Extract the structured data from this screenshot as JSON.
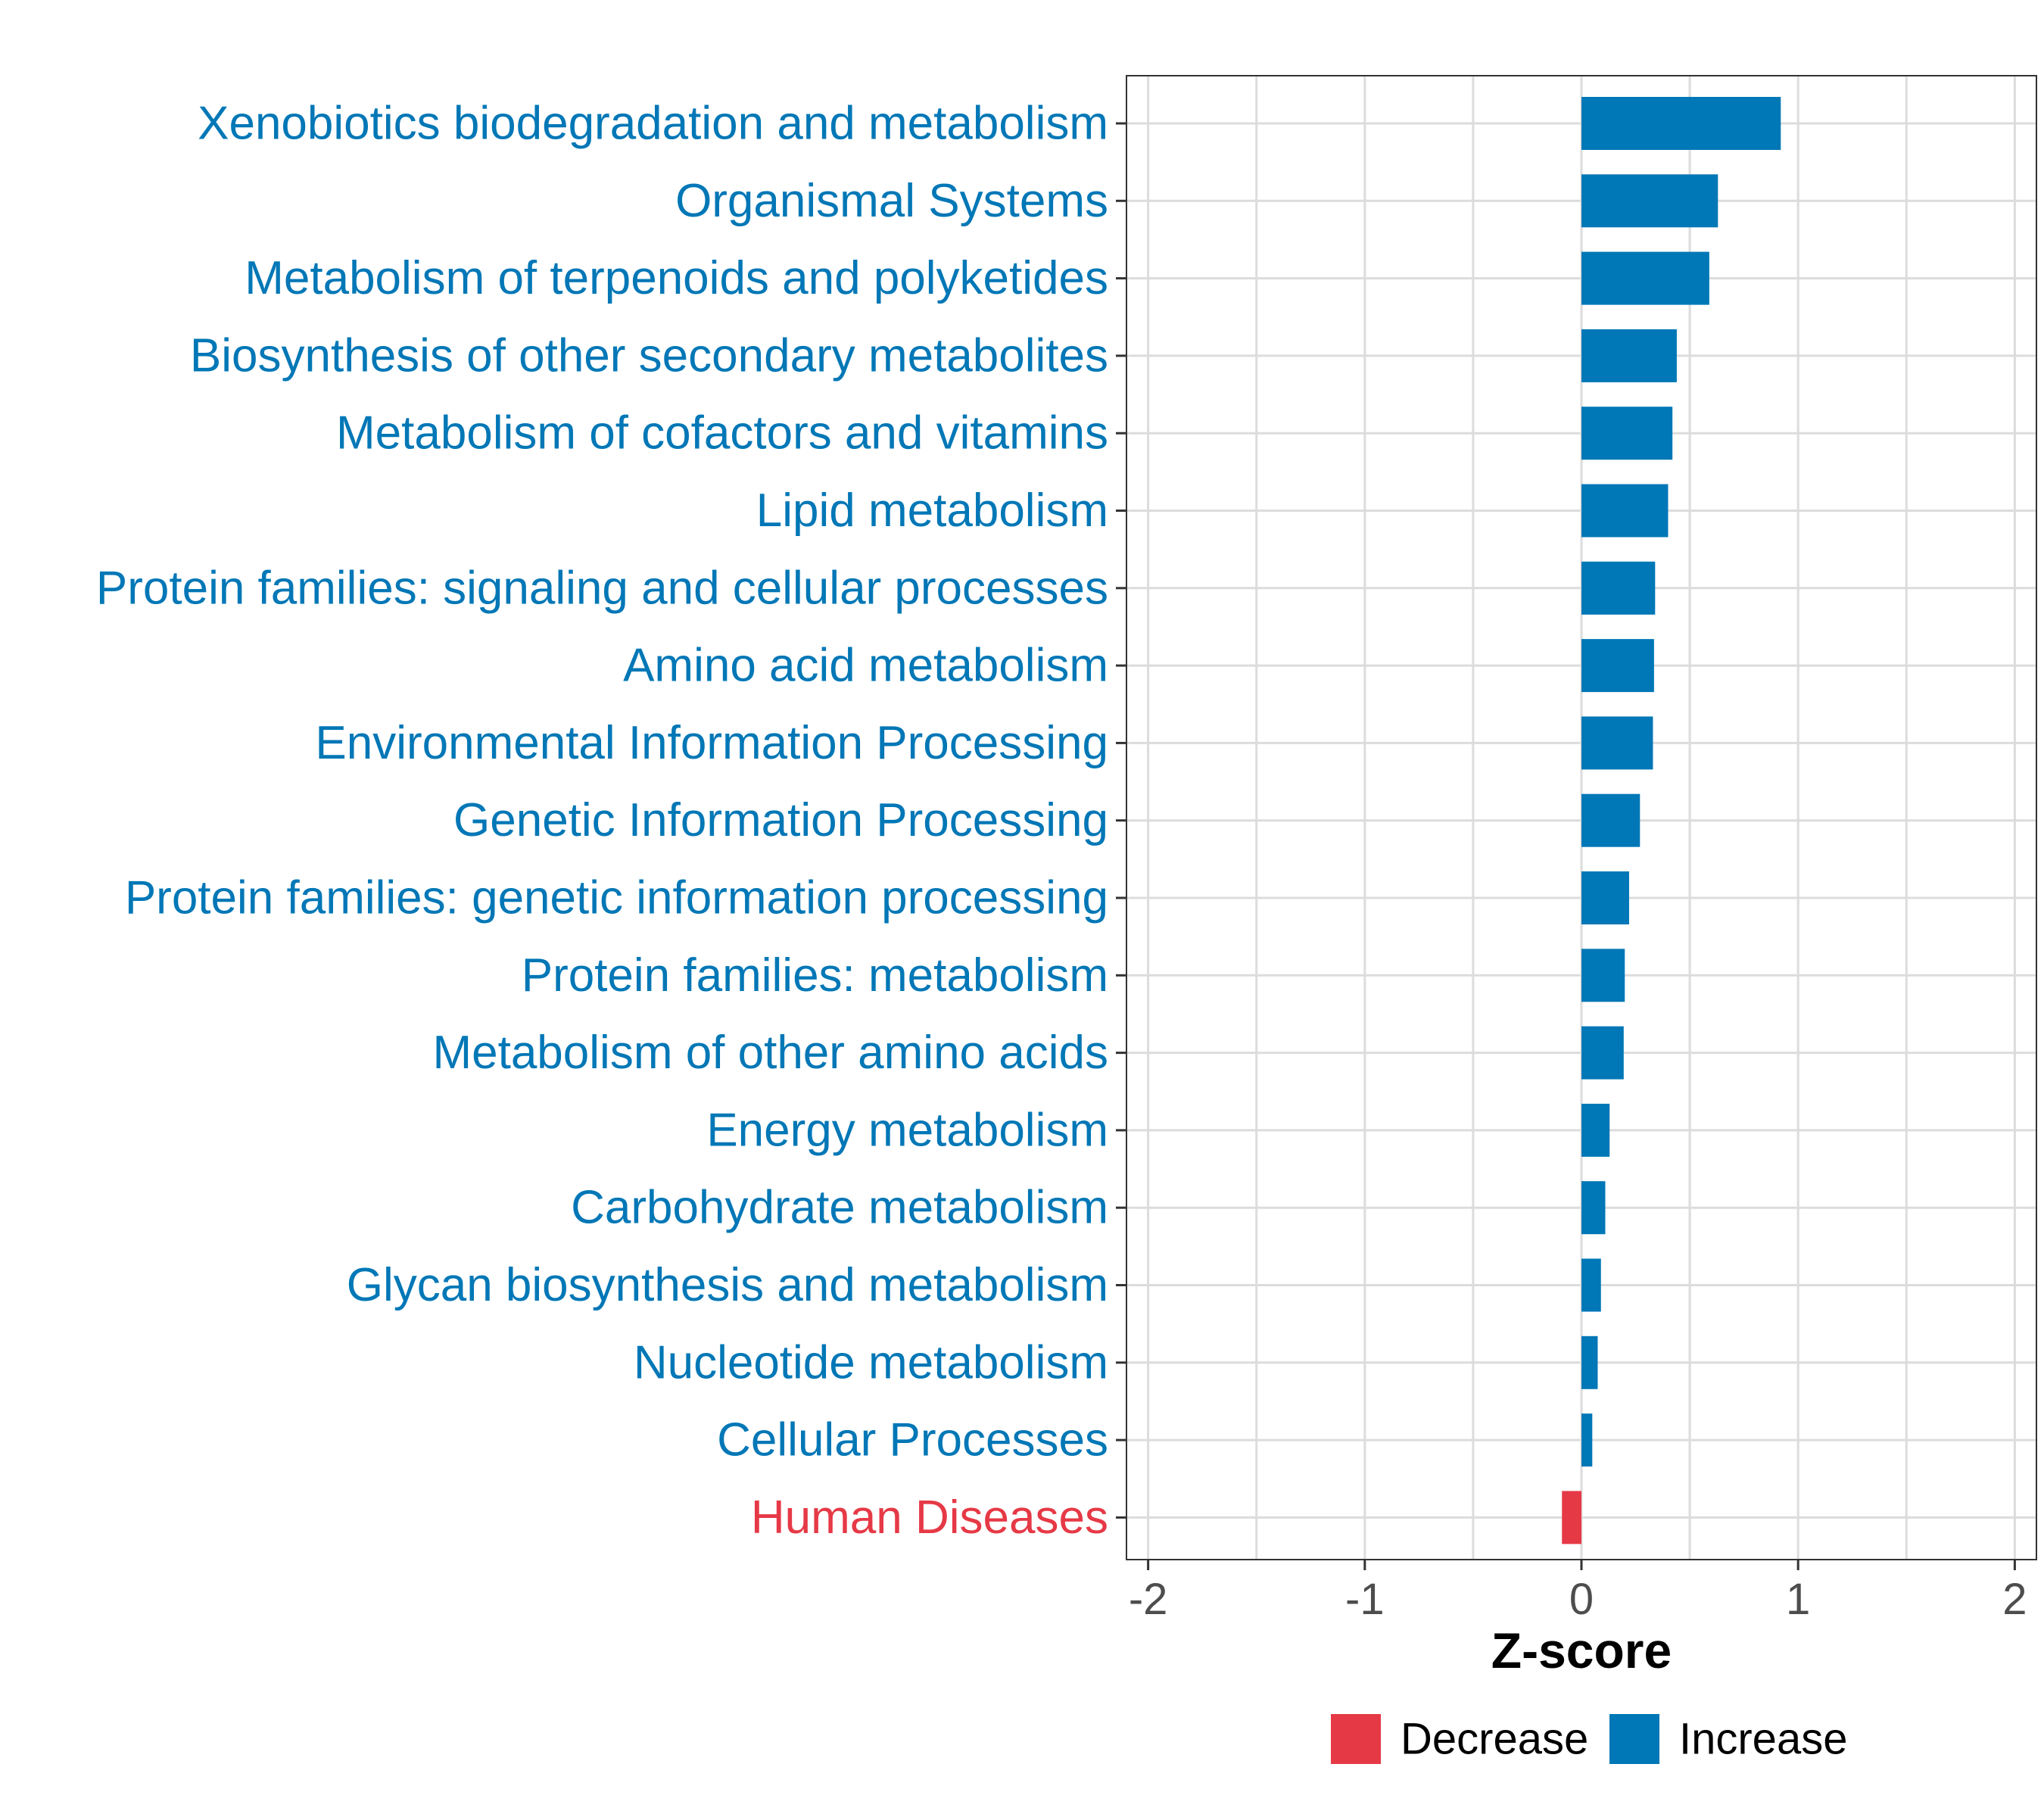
{
  "colors": {
    "increase": "#0077B6",
    "decrease": "#E63946",
    "grid": "#DCDCDC",
    "border": "#333333",
    "tick_text": "#4D4D4D"
  },
  "chart_data": {
    "type": "bar",
    "orientation": "horizontal",
    "title": "",
    "xlabel": "Z-score",
    "ylabel": "",
    "xlim": [
      -2.1,
      2.1
    ],
    "xticks": [
      -2,
      -1,
      0,
      1,
      2
    ],
    "xtick_labels": [
      "-2",
      "-1",
      "0",
      "1",
      "2"
    ],
    "grid": true,
    "legend_position": "bottom",
    "legend": [
      {
        "name": "Decrease",
        "color_key": "decrease"
      },
      {
        "name": "Increase",
        "color_key": "increase"
      }
    ],
    "categories": [
      "Xenobiotics biodegradation and metabolism",
      "Organismal Systems",
      "Metabolism of terpenoids and polyketides",
      "Biosynthesis of other secondary metabolites",
      "Metabolism of cofactors and vitamins",
      "Lipid metabolism",
      "Protein families: signaling and cellular processes",
      "Amino acid metabolism",
      "Environmental Information Processing",
      "Genetic Information Processing",
      "Protein families: genetic information processing",
      "Protein families: metabolism",
      "Metabolism of other amino acids",
      "Energy metabolism",
      "Carbohydrate metabolism",
      "Glycan biosynthesis and metabolism",
      "Nucleotide metabolism",
      "Cellular Processes",
      "Human Diseases"
    ],
    "values": [
      0.92,
      0.63,
      0.59,
      0.44,
      0.42,
      0.4,
      0.34,
      0.335,
      0.33,
      0.27,
      0.22,
      0.2,
      0.195,
      0.13,
      0.11,
      0.09,
      0.075,
      0.05,
      -0.09
    ]
  }
}
